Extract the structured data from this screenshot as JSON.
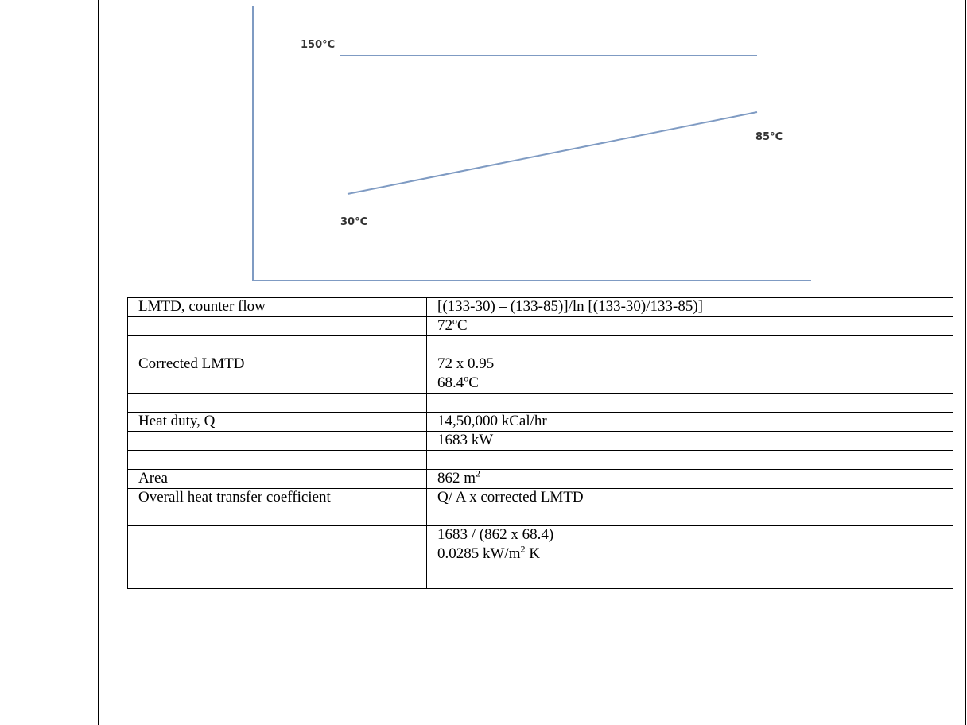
{
  "diagram": {
    "hot_label": "150°C",
    "cold_out_label": "85°C",
    "cold_in_label": "30°C",
    "line_color": "#7f9bc3"
  },
  "table": {
    "rows": [
      {
        "label": "LMTD, counter flow",
        "value": "[(133-30) – (133-85)]/ln [(133-30)/133-85)]"
      },
      {
        "label": "",
        "value_main": "72",
        "value_sup": "o",
        "value_tail": "C"
      },
      {
        "label": "",
        "value": ""
      },
      {
        "label": "Corrected LMTD",
        "value": "72 x 0.95"
      },
      {
        "label": "",
        "value_main": "68.4",
        "value_sup": "o",
        "value_tail": "C"
      },
      {
        "label": "",
        "value": ""
      },
      {
        "label": "Heat duty, Q",
        "value": "14,50,000 kCal/hr"
      },
      {
        "label": "",
        "value": "1683 kW"
      },
      {
        "label": "",
        "value": ""
      },
      {
        "label": "Area",
        "value_main": "862 m",
        "value_sup": "2",
        "value_tail": ""
      },
      {
        "label": "Overall heat transfer coefficient",
        "value": "Q/ A x corrected LMTD"
      },
      {
        "label": "",
        "value": "1683 / (862 x 68.4)"
      },
      {
        "label": "",
        "value_main": "0.0285 kW/m",
        "value_sup": "2",
        "value_tail": " K"
      },
      {
        "label": "",
        "value": ""
      }
    ]
  }
}
